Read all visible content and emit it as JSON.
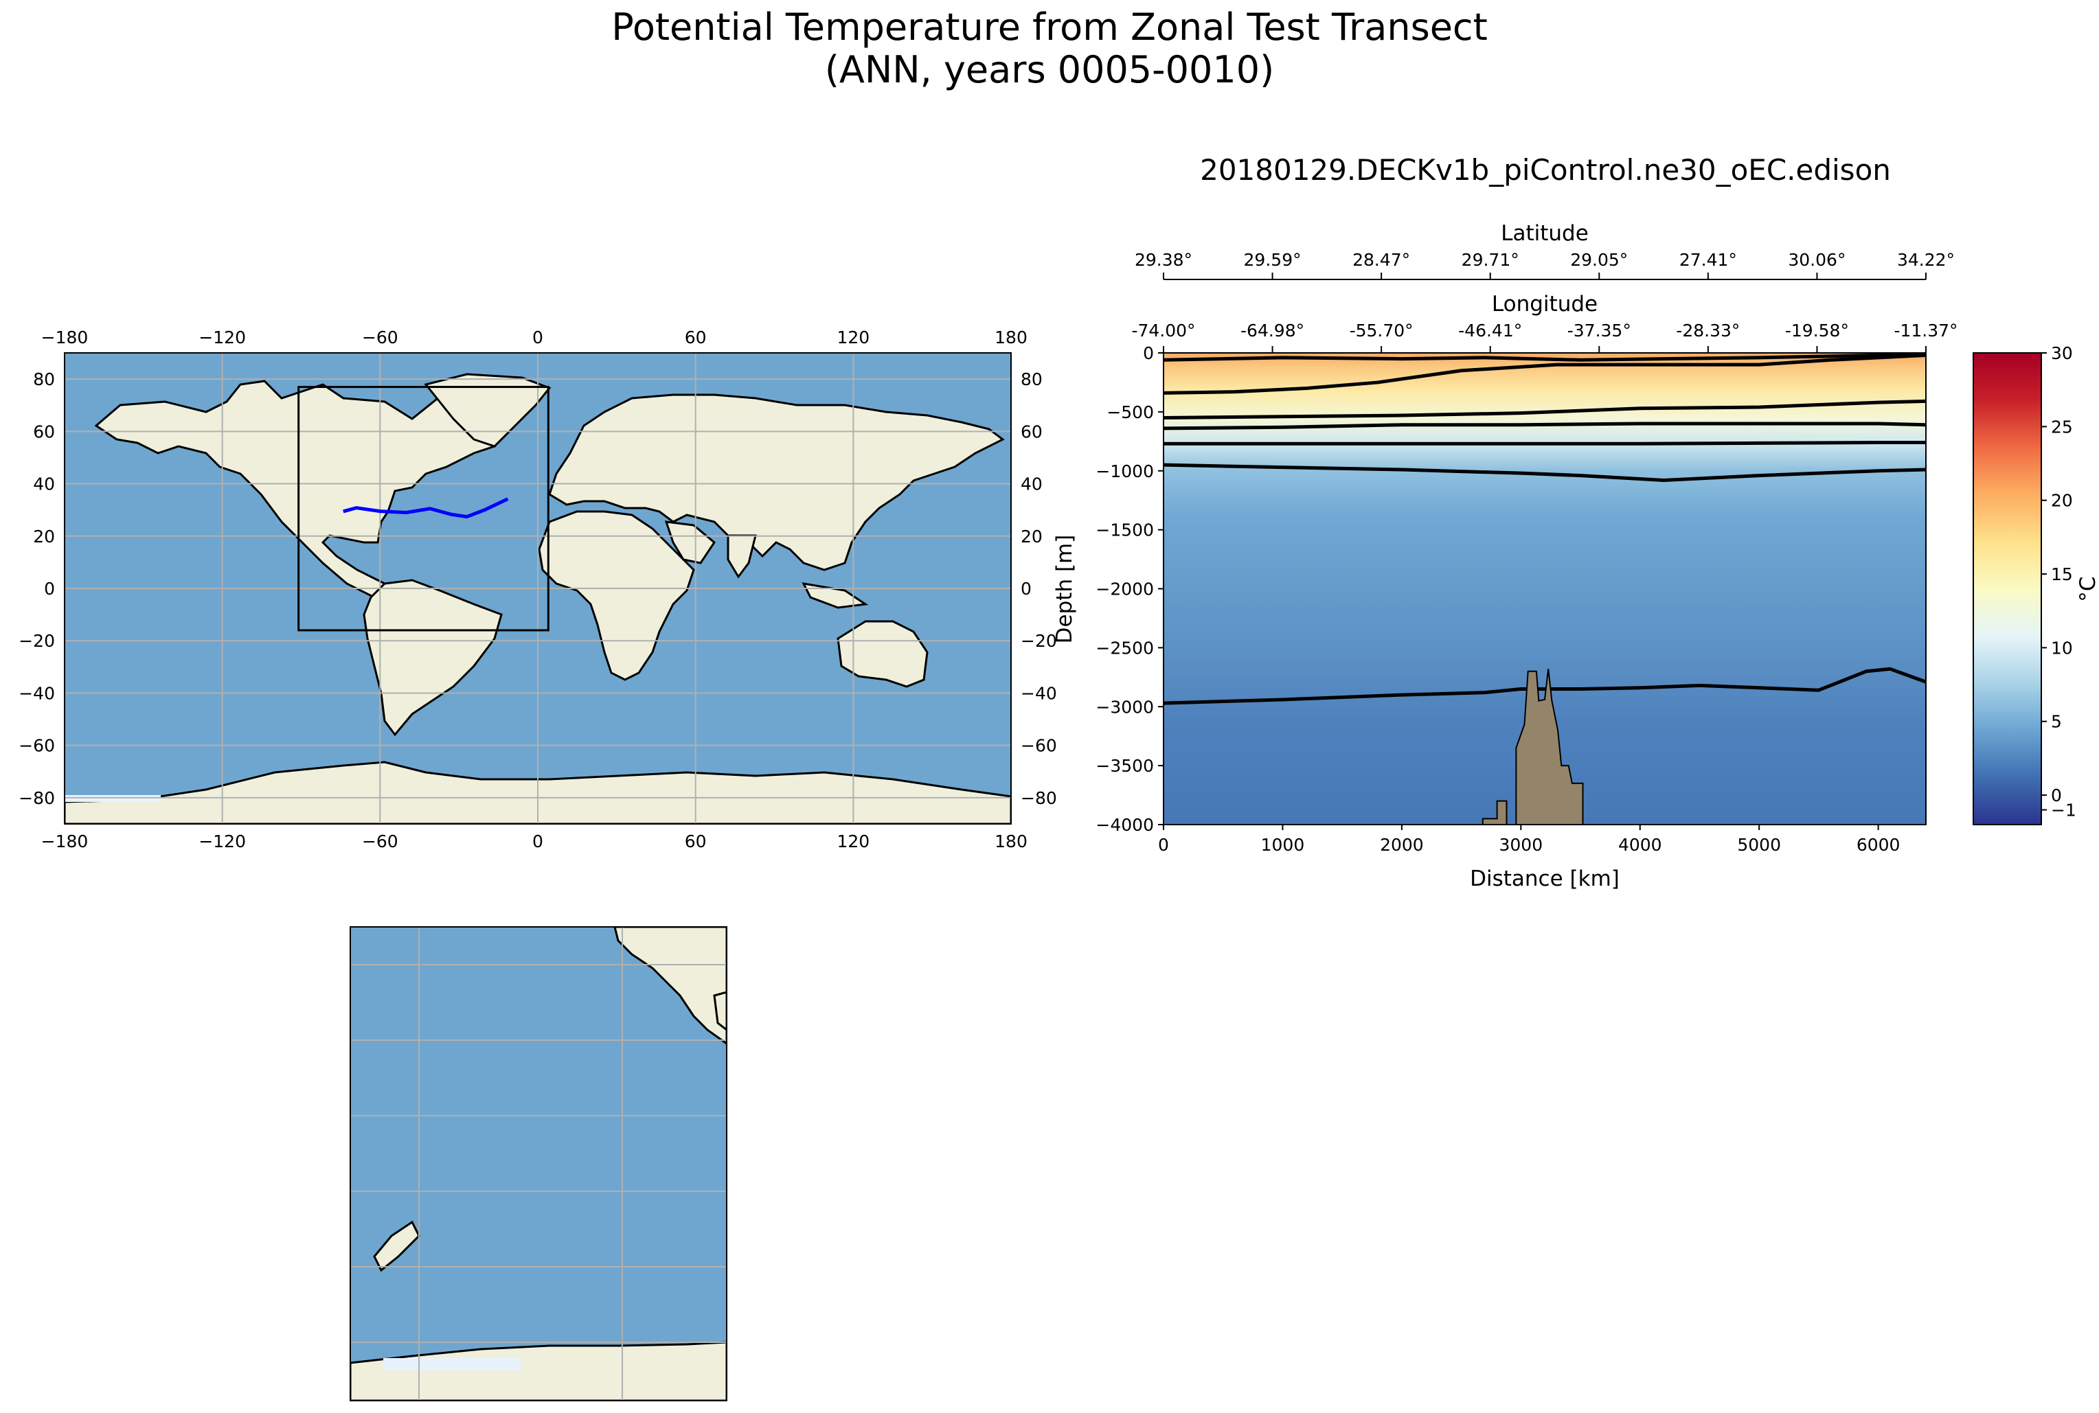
{
  "figure": {
    "title_line1": "Potential Temperature from Zonal Test Transect",
    "title_line2": "(ANN, years 0005-0010)",
    "section_title": "20180129.DECKv1b_piControl.ne30_oEC.edison"
  },
  "colors": {
    "ocean": "#6fa6cf",
    "land": "#efefdc",
    "transect": "#0000ff",
    "grid": "#b0b0b0",
    "bathymetry": "#948469"
  },
  "chart_data": [
    {
      "type": "map",
      "name": "global-map",
      "lon_range": [
        -180,
        180
      ],
      "lat_range": [
        -90,
        90
      ],
      "xticks": [
        "−180",
        "−120",
        "−60",
        "0",
        "60",
        "120",
        "180"
      ],
      "yticks": [
        "80",
        "60",
        "40",
        "20",
        "0",
        "−20",
        "−40",
        "−60",
        "−80"
      ],
      "region_box": {
        "lon": [
          -91,
          4
        ],
        "lat": [
          -16,
          77
        ]
      },
      "transect": {
        "lon": [
          -74,
          -69,
          -60,
          -50,
          -41,
          -33,
          -27,
          -20,
          -11.4
        ],
        "lat": [
          29.4,
          30.8,
          29.5,
          29.0,
          30.5,
          28.3,
          27.4,
          30.1,
          34.2
        ]
      }
    },
    {
      "type": "map",
      "name": "inset-map",
      "lon_range": [
        140,
        200
      ],
      "lat_range": [
        -88,
        5
      ],
      "gridlines": true
    },
    {
      "type": "heatmap",
      "name": "transect-section",
      "title": "20180129.DECKv1b_piControl.ne30_oEC.edison",
      "xlabel": "Distance [km]",
      "ylabel": "Depth [m]",
      "xlim": [
        0,
        6400
      ],
      "ylim": [
        -4000,
        0
      ],
      "xticks": [
        0,
        1000,
        2000,
        3000,
        4000,
        5000,
        6000
      ],
      "xtick_labels": [
        "0",
        "1000",
        "2000",
        "3000",
        "4000",
        "5000",
        "6000"
      ],
      "yticks": [
        0,
        -500,
        -1000,
        -1500,
        -2000,
        -2500,
        -3000,
        -3500,
        -4000
      ],
      "ytick_labels": [
        "0",
        "−500",
        "−1000",
        "−1500",
        "−2000",
        "−2500",
        "−3000",
        "−3500",
        "−4000"
      ],
      "top_axes": {
        "latitude_label": "Latitude",
        "longitude_label": "Longitude",
        "latitudes": [
          "29.38°",
          "29.59°",
          "28.47°",
          "29.71°",
          "29.05°",
          "27.41°",
          "30.06°",
          "34.22°"
        ],
        "longitudes": [
          "-74.00°",
          "-64.98°",
          "-55.70°",
          "-46.41°",
          "-37.35°",
          "-28.33°",
          "-19.58°",
          "-11.37°"
        ]
      },
      "contours": [
        {
          "level": 20,
          "points": [
            [
              0,
              -60
            ],
            [
              1000,
              -40
            ],
            [
              2000,
              -50
            ],
            [
              2700,
              -40
            ],
            [
              3500,
              -60
            ],
            [
              4200,
              -50
            ],
            [
              5000,
              -40
            ],
            [
              6000,
              -20
            ],
            [
              6400,
              -10
            ]
          ]
        },
        {
          "level": 15,
          "points": [
            [
              0,
              -340
            ],
            [
              600,
              -330
            ],
            [
              1200,
              -300
            ],
            [
              1800,
              -250
            ],
            [
              2500,
              -150
            ],
            [
              3300,
              -100
            ],
            [
              4000,
              -100
            ],
            [
              5000,
              -100
            ],
            [
              5600,
              -60
            ],
            [
              6400,
              -20
            ]
          ]
        },
        {
          "level": 10,
          "points": [
            [
              0,
              -550
            ],
            [
              1000,
              -540
            ],
            [
              2000,
              -530
            ],
            [
              3000,
              -510
            ],
            [
              4000,
              -470
            ],
            [
              5000,
              -460
            ],
            [
              6000,
              -420
            ],
            [
              6400,
              -410
            ]
          ]
        },
        {
          "level": 8,
          "points": [
            [
              0,
              -640
            ],
            [
              1000,
              -630
            ],
            [
              2000,
              -610
            ],
            [
              3000,
              -610
            ],
            [
              4000,
              -600
            ],
            [
              5000,
              -600
            ],
            [
              6000,
              -600
            ],
            [
              6400,
              -610
            ]
          ]
        },
        {
          "level": 6,
          "points": [
            [
              0,
              -770
            ],
            [
              1000,
              -770
            ],
            [
              2000,
              -770
            ],
            [
              3000,
              -770
            ],
            [
              4000,
              -770
            ],
            [
              5000,
              -765
            ],
            [
              6000,
              -760
            ],
            [
              6400,
              -760
            ]
          ]
        },
        {
          "level": 4,
          "points": [
            [
              0,
              -950
            ],
            [
              1000,
              -970
            ],
            [
              2000,
              -990
            ],
            [
              3000,
              -1020
            ],
            [
              3500,
              -1040
            ],
            [
              4200,
              -1080
            ],
            [
              5000,
              -1040
            ],
            [
              6000,
              -1000
            ],
            [
              6400,
              -990
            ]
          ]
        },
        {
          "level": 2,
          "points": [
            [
              0,
              -2970
            ],
            [
              1000,
              -2940
            ],
            [
              2000,
              -2900
            ],
            [
              2700,
              -2880
            ],
            [
              3000,
              -2850
            ],
            [
              3500,
              -2850
            ],
            [
              4000,
              -2840
            ],
            [
              4500,
              -2820
            ],
            [
              5000,
              -2840
            ],
            [
              5500,
              -2860
            ],
            [
              5900,
              -2700
            ],
            [
              6100,
              -2680
            ],
            [
              6400,
              -2790
            ]
          ]
        }
      ],
      "bathymetry": [
        [
          2680,
          -4000
        ],
        [
          2680,
          -3950
        ],
        [
          2800,
          -3950
        ],
        [
          2800,
          -3800
        ],
        [
          2880,
          -3800
        ],
        [
          2880,
          -4000
        ],
        [
          2960,
          -4000
        ],
        [
          2960,
          -3350
        ],
        [
          3030,
          -3150
        ],
        [
          3060,
          -2700
        ],
        [
          3130,
          -2700
        ],
        [
          3150,
          -2950
        ],
        [
          3200,
          -2940
        ],
        [
          3230,
          -2680
        ],
        [
          3260,
          -2950
        ],
        [
          3310,
          -3200
        ],
        [
          3340,
          -3500
        ],
        [
          3400,
          -3500
        ],
        [
          3430,
          -3650
        ],
        [
          3520,
          -3650
        ],
        [
          3520,
          -4000
        ]
      ],
      "colorbar": {
        "label": "°C",
        "range": [
          -2,
          30
        ],
        "ticks": [
          0,
          5,
          10,
          15,
          20,
          25,
          30
        ],
        "tick_labels": [
          "0",
          "5",
          "10",
          "15",
          "20",
          "25",
          "30"
        ],
        "extra_tick": {
          "value": -1,
          "label": "−1"
        },
        "stops": [
          "#2c3490",
          "#3f6fb0",
          "#6aa5d3",
          "#aad3e8",
          "#e6f5f8",
          "#fafac3",
          "#fee18a",
          "#fdae61",
          "#ef6a43",
          "#c8202a",
          "#a50026"
        ]
      }
    }
  ]
}
